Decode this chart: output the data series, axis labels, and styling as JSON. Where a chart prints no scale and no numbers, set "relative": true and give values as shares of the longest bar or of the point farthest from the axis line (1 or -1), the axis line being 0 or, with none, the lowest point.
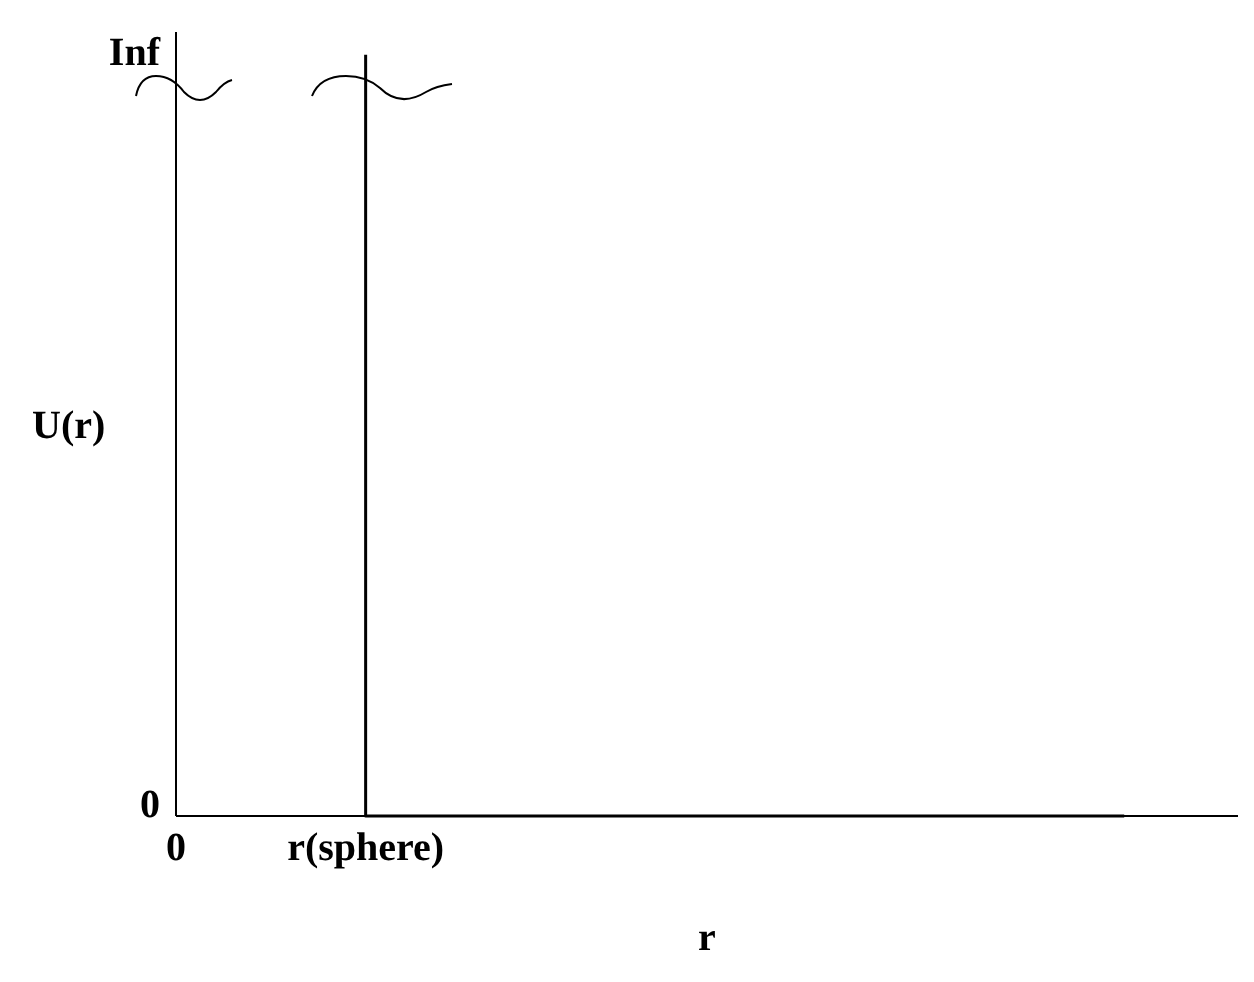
{
  "chart_data": {
    "type": "step",
    "xlabel": "r",
    "ylabel": "U(r)",
    "relative": true,
    "categories": [
      "0",
      "r(sphere)",
      null,
      null,
      null,
      null
    ],
    "series": [
      {
        "color": "#000000",
        "values": [
          null,
          1,
          0,
          0,
          0,
          0
        ]
      }
    ],
    "annotations": [
      "Inf",
      "0"
    ],
    "grid": false,
    "legend": false,
    "marker": "none",
    "line_style": "solid"
  }
}
